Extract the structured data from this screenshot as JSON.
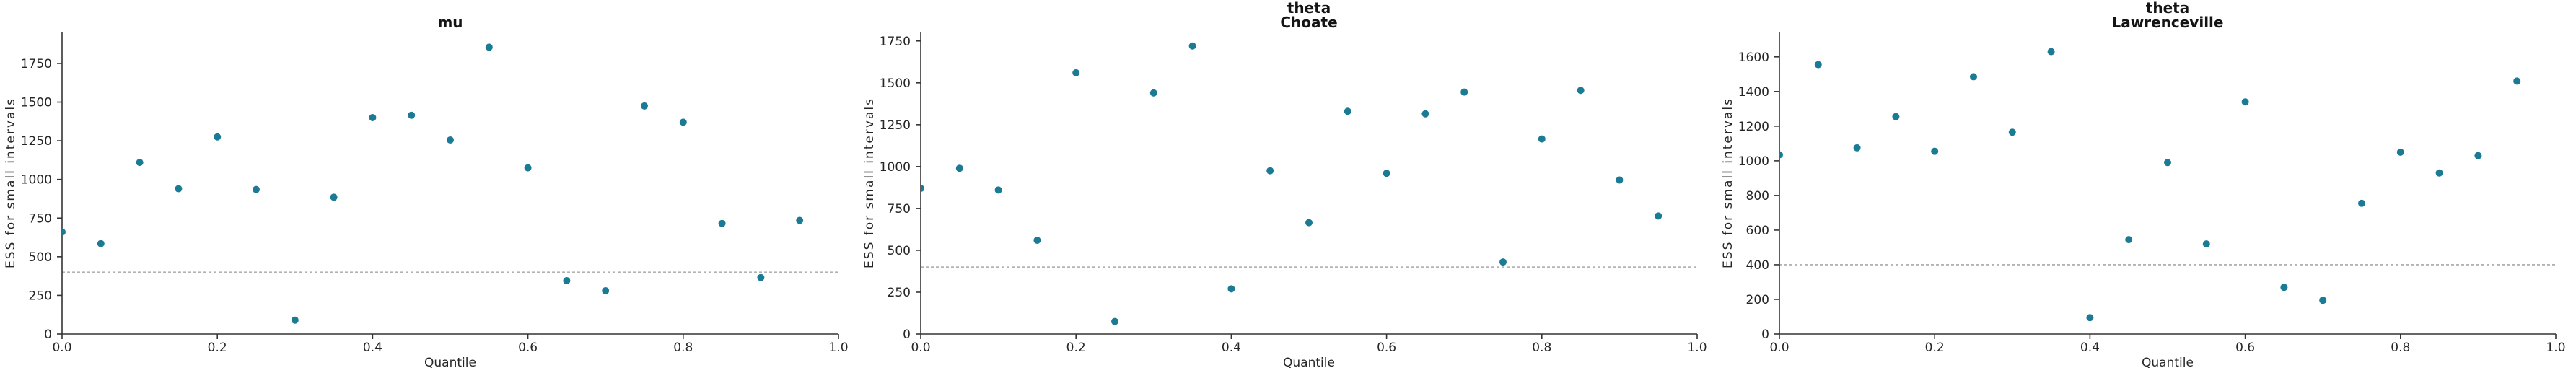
{
  "figure": {
    "background": "#ffffff",
    "colors": {
      "marker": "#1b7b94",
      "threshold_line": "#b3b3b3",
      "axis": "#343434",
      "tick_text": "#262626",
      "title_text": "#141414"
    }
  },
  "chart_data": [
    {
      "type": "scatter",
      "title": "mu",
      "title_lines": [
        "mu"
      ],
      "xlabel": "Quantile",
      "ylabel": "ESS for small intervals",
      "x": [
        0.0,
        0.05,
        0.1,
        0.15,
        0.2,
        0.25,
        0.3,
        0.35,
        0.4,
        0.45,
        0.5,
        0.55,
        0.6,
        0.65,
        0.7,
        0.75,
        0.8,
        0.85,
        0.9,
        0.95
      ],
      "y": [
        660,
        585,
        1110,
        940,
        1275,
        935,
        90,
        885,
        1400,
        1415,
        1255,
        1855,
        1075,
        345,
        280,
        1475,
        1370,
        715,
        365,
        735
      ],
      "threshold": 400,
      "xlim": [
        0.0,
        1.0
      ],
      "ylim": [
        0,
        1955
      ],
      "xtick_values": [
        0.0,
        0.2,
        0.4,
        0.6,
        0.8,
        1.0
      ],
      "xtick_labels": [
        "0.0",
        "0.2",
        "0.4",
        "0.6",
        "0.8",
        "1.0"
      ],
      "ytick_values": [
        0,
        250,
        500,
        750,
        1000,
        1250,
        1500,
        1750
      ],
      "ytick_labels": [
        "0",
        "250",
        "500",
        "750",
        "1000",
        "1250",
        "1500",
        "1750"
      ],
      "grid": false,
      "legend": "none"
    },
    {
      "type": "scatter",
      "title": "theta Choate",
      "title_lines": [
        "theta",
        "Choate"
      ],
      "xlabel": "Quantile",
      "ylabel": "ESS for small intervals",
      "x": [
        0.0,
        0.05,
        0.1,
        0.15,
        0.2,
        0.25,
        0.3,
        0.35,
        0.4,
        0.45,
        0.5,
        0.55,
        0.6,
        0.65,
        0.7,
        0.75,
        0.8,
        0.85,
        0.9,
        0.95
      ],
      "y": [
        870,
        990,
        860,
        560,
        1560,
        75,
        1440,
        1720,
        270,
        975,
        665,
        1330,
        960,
        1315,
        1445,
        430,
        1165,
        1455,
        920,
        705
      ],
      "threshold": 400,
      "xlim": [
        0.0,
        1.0
      ],
      "ylim": [
        0,
        1805
      ],
      "xtick_values": [
        0.0,
        0.2,
        0.4,
        0.6,
        0.8,
        1.0
      ],
      "xtick_labels": [
        "0.0",
        "0.2",
        "0.4",
        "0.6",
        "0.8",
        "1.0"
      ],
      "ytick_values": [
        0,
        250,
        500,
        750,
        1000,
        1250,
        1500,
        1750
      ],
      "ytick_labels": [
        "0",
        "250",
        "500",
        "750",
        "1000",
        "1250",
        "1500",
        "1750"
      ],
      "grid": false,
      "legend": "none"
    },
    {
      "type": "scatter",
      "title": "theta Lawrenceville",
      "title_lines": [
        "theta",
        "Lawrenceville"
      ],
      "xlabel": "Quantile",
      "ylabel": "ESS for small intervals",
      "x": [
        0.0,
        0.05,
        0.1,
        0.15,
        0.2,
        0.25,
        0.3,
        0.35,
        0.4,
        0.45,
        0.5,
        0.55,
        0.6,
        0.65,
        0.7,
        0.75,
        0.8,
        0.85,
        0.9,
        0.95
      ],
      "y": [
        1035,
        1555,
        1075,
        1255,
        1055,
        1485,
        1165,
        1630,
        95,
        545,
        990,
        520,
        1340,
        270,
        195,
        755,
        1050,
        930,
        1030,
        1460
      ],
      "threshold": 400,
      "xlim": [
        0.0,
        1.0
      ],
      "ylim": [
        0,
        1745
      ],
      "xtick_values": [
        0.0,
        0.2,
        0.4,
        0.6,
        0.8,
        1.0
      ],
      "xtick_labels": [
        "0.0",
        "0.2",
        "0.4",
        "0.6",
        "0.8",
        "1.0"
      ],
      "ytick_values": [
        0,
        200,
        400,
        600,
        800,
        1000,
        1200,
        1400,
        1600
      ],
      "ytick_labels": [
        "0",
        "200",
        "400",
        "600",
        "800",
        "1000",
        "1200",
        "1400",
        "1600"
      ],
      "grid": false,
      "legend": "none"
    }
  ]
}
